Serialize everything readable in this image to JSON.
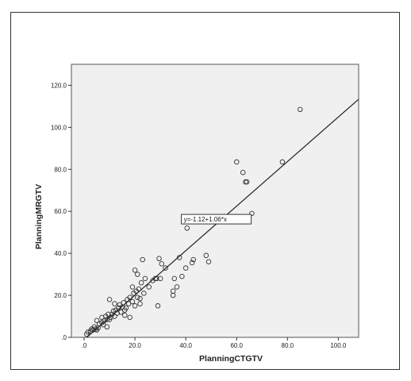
{
  "chart_data": {
    "type": "scatter",
    "title": "",
    "xlabel": "PlanningCTGTV",
    "ylabel": "PlanningMRGTV",
    "xlim": [
      -5,
      108
    ],
    "ylim": [
      0,
      130
    ],
    "xticks": [
      0,
      20,
      40,
      60,
      80,
      100
    ],
    "xtick_labels": [
      ".0",
      "20.0",
      "40.0",
      "60.0",
      "80.0",
      "100.0"
    ],
    "yticks": [
      0,
      20,
      40,
      60,
      80,
      100,
      120
    ],
    "ytick_labels": [
      ".0",
      "20.0",
      "40.0",
      "60.0",
      "80.0",
      "100.0",
      "120.0"
    ],
    "grid": false,
    "legend": "none",
    "fit_line": {
      "intercept": -1.12,
      "slope": 1.06,
      "label": "y=-1.12+1.06*x"
    },
    "points": [
      [
        1.0,
        1.5
      ],
      [
        1.5,
        2.5
      ],
      [
        2.5,
        3.0
      ],
      [
        3.0,
        4.0
      ],
      [
        3.5,
        3.5
      ],
      [
        4.0,
        5.0
      ],
      [
        4.5,
        4.0
      ],
      [
        5.0,
        3.5
      ],
      [
        5.0,
        8.0
      ],
      [
        5.5,
        4.5
      ],
      [
        6.0,
        6.5
      ],
      [
        7.0,
        7.0
      ],
      [
        7.0,
        9.5
      ],
      [
        7.5,
        6.0
      ],
      [
        8.0,
        8.0
      ],
      [
        8.5,
        10.0
      ],
      [
        9.0,
        5.0
      ],
      [
        9.0,
        8.5
      ],
      [
        9.5,
        11.0
      ],
      [
        10.0,
        8.5
      ],
      [
        10.0,
        18.0
      ],
      [
        10.5,
        9.5
      ],
      [
        11.0,
        11.0
      ],
      [
        11.5,
        12.5
      ],
      [
        12.0,
        10.0
      ],
      [
        12.0,
        16.0
      ],
      [
        12.5,
        13.0
      ],
      [
        13.0,
        11.5
      ],
      [
        13.5,
        14.0
      ],
      [
        14.0,
        15.5
      ],
      [
        14.5,
        12.0
      ],
      [
        15.0,
        14.5
      ],
      [
        15.5,
        16.5
      ],
      [
        16.0,
        10.5
      ],
      [
        16.0,
        13.0
      ],
      [
        16.5,
        14.0
      ],
      [
        17.0,
        18.0
      ],
      [
        17.5,
        16.0
      ],
      [
        18.0,
        19.0
      ],
      [
        18.0,
        9.5
      ],
      [
        19.0,
        17.0
      ],
      [
        19.0,
        24.0
      ],
      [
        19.5,
        21.0
      ],
      [
        20.0,
        32.0
      ],
      [
        20.0,
        15.0
      ],
      [
        20.5,
        22.0
      ],
      [
        21.0,
        19.0
      ],
      [
        21.0,
        30.0
      ],
      [
        21.5,
        23.0
      ],
      [
        22.0,
        18.5
      ],
      [
        22.0,
        16.0
      ],
      [
        22.5,
        26.0
      ],
      [
        23.0,
        37.0
      ],
      [
        23.5,
        21.0
      ],
      [
        24.0,
        28.0
      ],
      [
        25.5,
        24.0
      ],
      [
        27.0,
        27.0
      ],
      [
        28.0,
        28.0
      ],
      [
        28.5,
        28.0
      ],
      [
        29.0,
        15.0
      ],
      [
        29.5,
        37.5
      ],
      [
        30.0,
        28.0
      ],
      [
        30.5,
        35.0
      ],
      [
        32.0,
        33.0
      ],
      [
        35.0,
        20.0
      ],
      [
        35.0,
        22.0
      ],
      [
        35.5,
        28.0
      ],
      [
        36.5,
        24.0
      ],
      [
        37.5,
        38.0
      ],
      [
        38.5,
        29.0
      ],
      [
        40.0,
        33.0
      ],
      [
        42.5,
        35.5
      ],
      [
        43.0,
        37.0
      ],
      [
        48.0,
        39.0
      ],
      [
        49.0,
        36.0
      ],
      [
        40.5,
        52.0
      ],
      [
        60.0,
        83.5
      ],
      [
        62.5,
        78.5
      ],
      [
        63.5,
        74.0
      ],
      [
        64.0,
        74.0
      ],
      [
        66.0,
        59.0
      ],
      [
        78.0,
        83.5
      ],
      [
        85.0,
        108.5
      ]
    ]
  }
}
